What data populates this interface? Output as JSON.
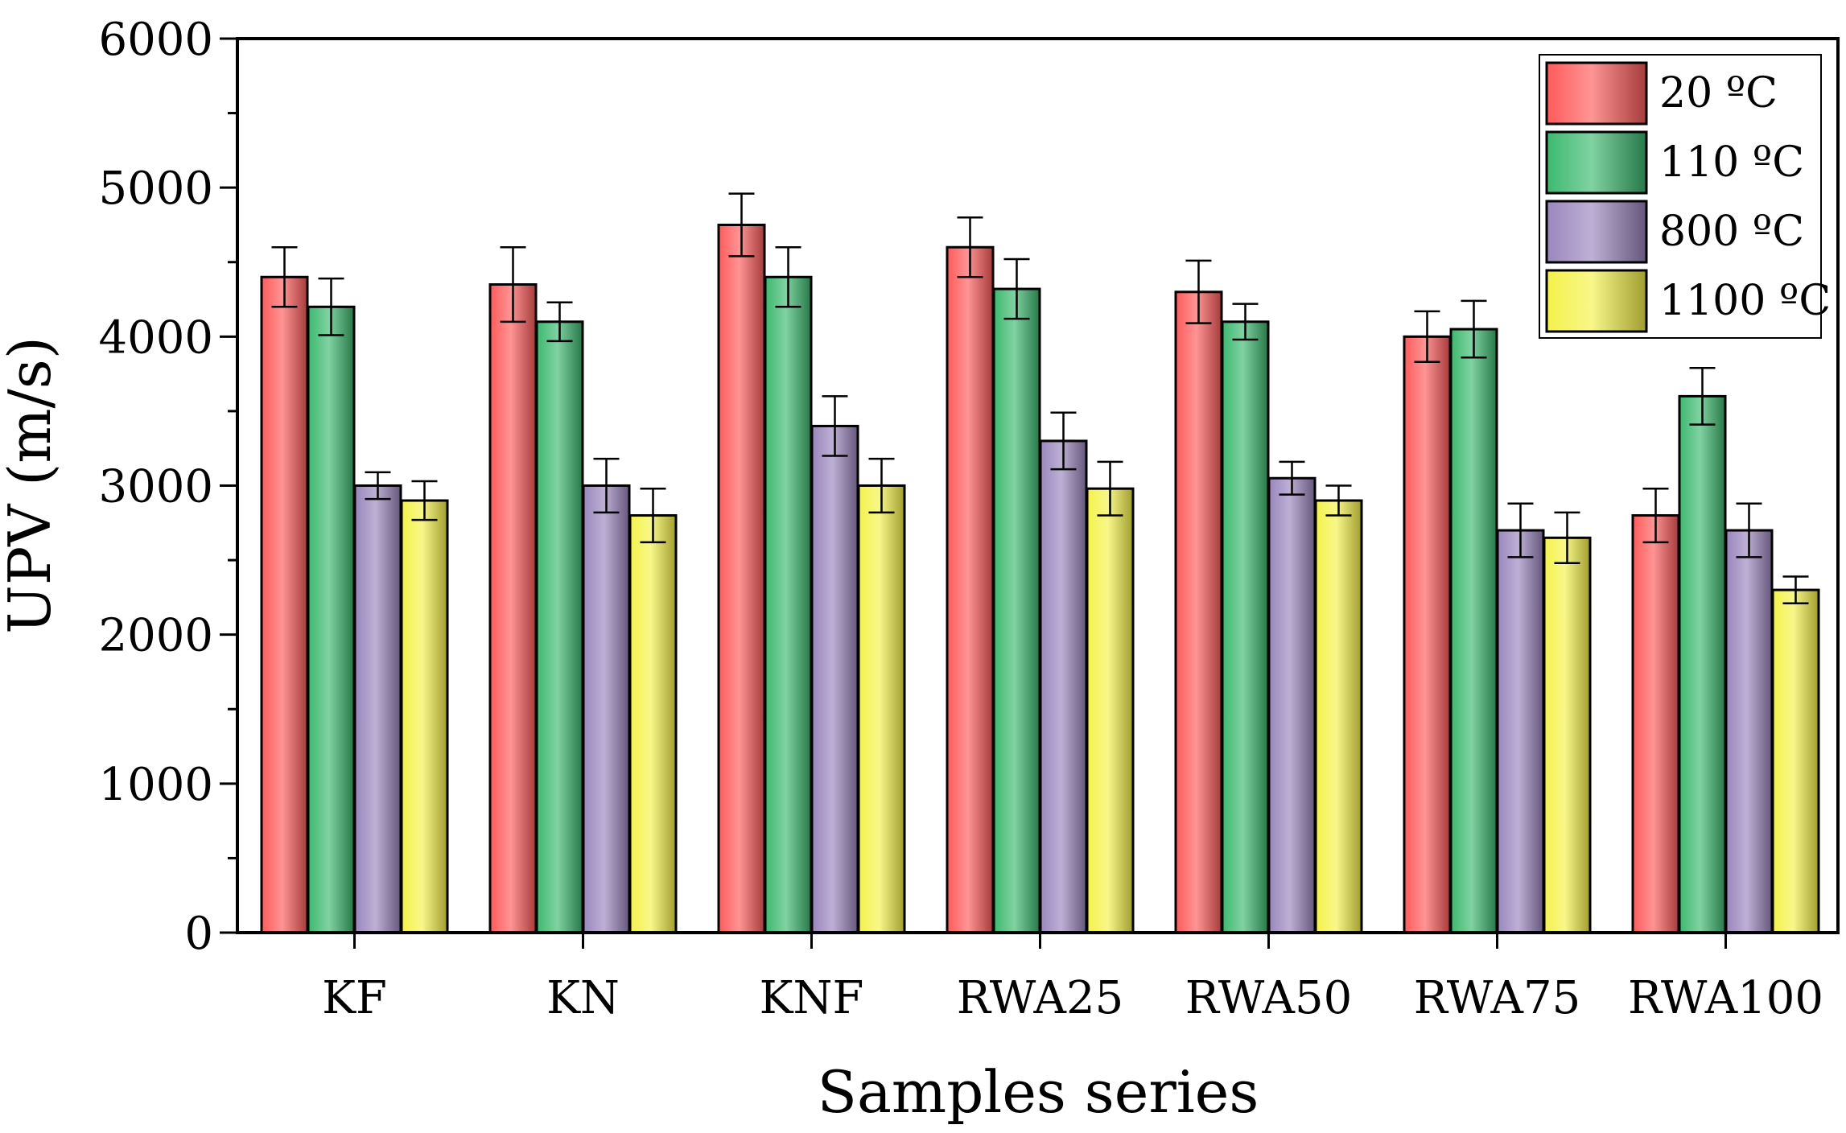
{
  "chart_data": {
    "type": "bar",
    "title": "",
    "xlabel": "Samples series",
    "ylabel": "UPV (m/s)",
    "ylim": [
      0,
      6000
    ],
    "yticks": [
      0,
      1000,
      2000,
      3000,
      4000,
      5000,
      6000
    ],
    "grid": false,
    "legend_position": "top-right",
    "categories": [
      "KF",
      "KN",
      "KNF",
      "RWA25",
      "RWA50",
      "RWA75",
      "RWA100"
    ],
    "series": [
      {
        "name": "20 ºC",
        "color": "#ff5a5a",
        "values": [
          4400,
          4350,
          4750,
          4600,
          4300,
          4000,
          2800
        ],
        "errors": [
          200,
          250,
          210,
          200,
          210,
          170,
          180
        ]
      },
      {
        "name": "110 ºC",
        "color": "#3cb96e",
        "values": [
          4200,
          4100,
          4400,
          4320,
          4100,
          4050,
          3600
        ],
        "errors": [
          190,
          130,
          200,
          200,
          120,
          190,
          190
        ]
      },
      {
        "name": "800 ºC",
        "color": "#9a86bd",
        "values": [
          3000,
          3000,
          3400,
          3300,
          3050,
          2700,
          2700
        ],
        "errors": [
          90,
          180,
          200,
          190,
          110,
          180,
          180
        ]
      },
      {
        "name": "1100 ºC",
        "color": "#f4f24a",
        "values": [
          2900,
          2800,
          3000,
          2980,
          2900,
          2650,
          2300
        ],
        "errors": [
          130,
          180,
          180,
          180,
          100,
          170,
          90
        ]
      }
    ]
  }
}
